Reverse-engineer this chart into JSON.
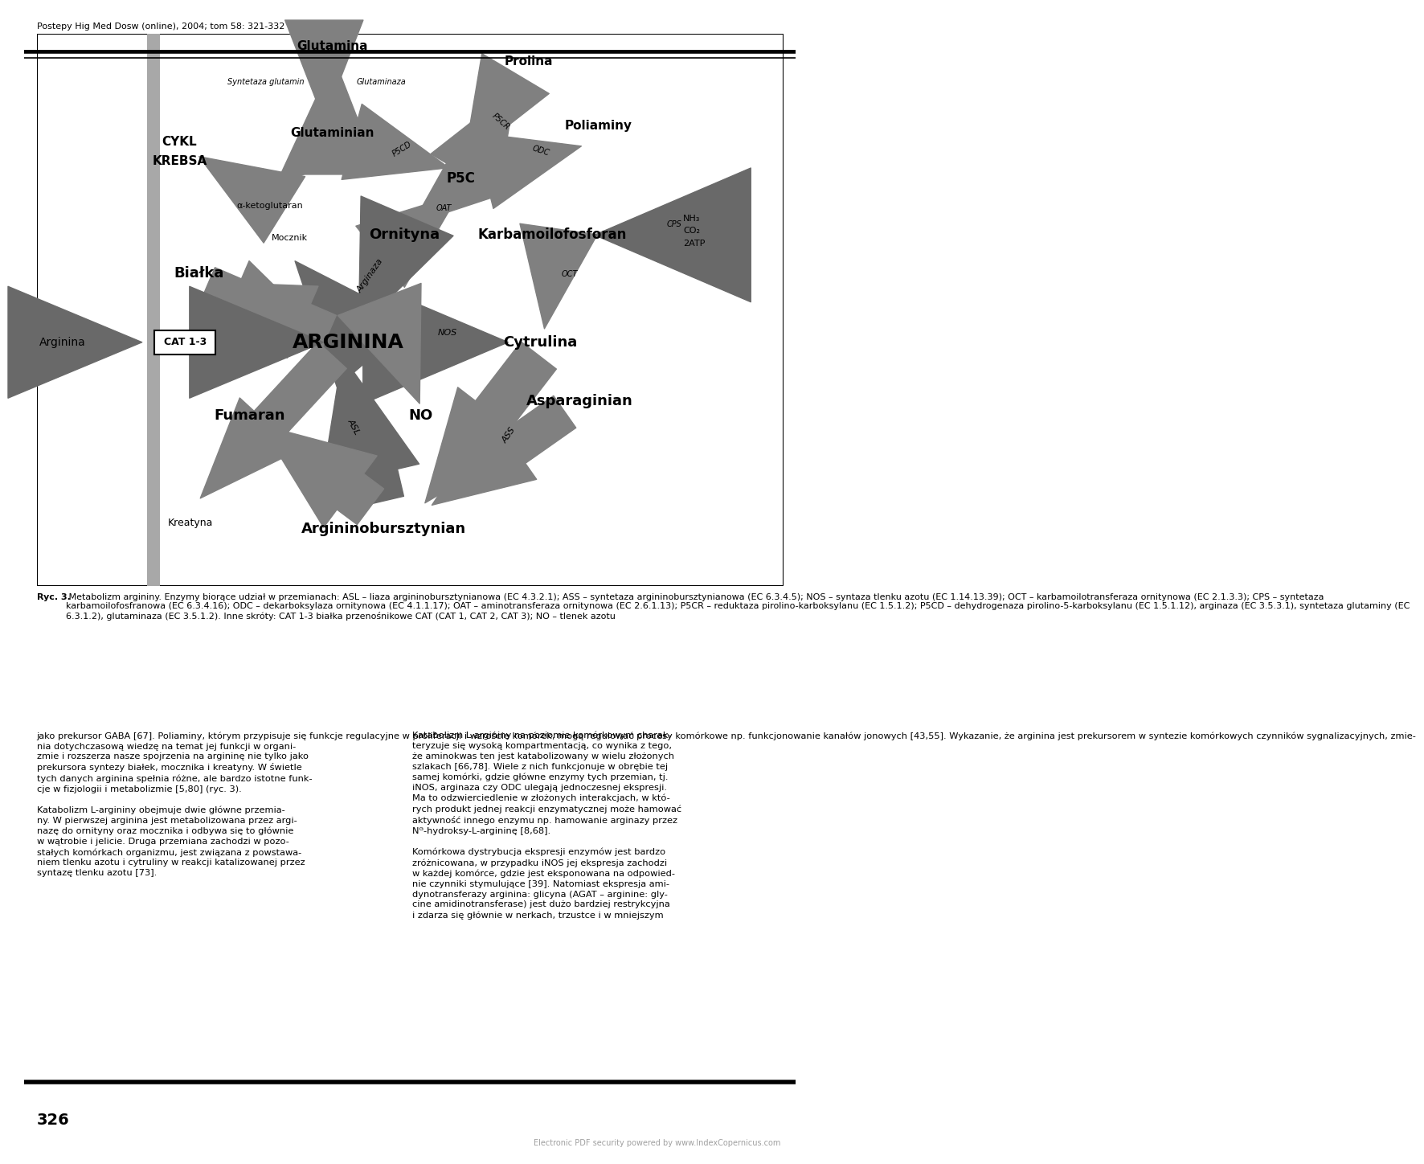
{
  "page_header": "Postepy Hig Med Dosw (online), 2004; tom 58: 321-332",
  "page_number": "326",
  "footer": "Electronic PDF security powered by www.IndexCopernicus.com",
  "caption_bold": "Ryc. 3.",
  "caption_text": " Metabolizm argininy. Enzymy biorące udział w przemianach: ASL – liaza argininobursztynianowa (EC 4.3.2.1); ASS – syntetaza argininobursztynianowa (EC 6.3.4.5); NOS – syntaza tlenku azotu (EC 1.14.13.39); OCT – karbamoilotransferaza ornitynowa (EC 2.1.3.3); CPS – syntetaza karbamoilofosfranowa (EC 6.3.4.16); ODC – dekarboksylaza ornitynowa (EC 4.1.1.17); OAT – aminotransferaza ornitynowa (EC 2.6.1.13); P5CR – reduktaza pirolino-karboksylanu (EC 1.5.1.2); P5CD – dehydrogenaza pirolino-5-karboksylanu (EC 1.5.1.12), arginaza (EC 3.5.3.1), syntetaza glutaminy (EC 6.3.1.2), glutaminaza (EC 3.5.1.2). Inne skróty: CAT 1-3 białka przenośnikowe CAT (CAT 1, CAT 2, CAT 3); NO – tlenek azotu",
  "body_left1": "jako prekursor GABA [67]. Poliaminy, którym przypisuje się funkcje regulacyjne w proliferacji i wzroście komórek, mogą regulować procesy komórkowe np. funkcjonowanie kanałów jonowych [43,55]. Wykazanie, że arginina jest prekursorem w syntezie komórkowych czynników sygnalizacyjnych, zmie-\nnia dotychczasową wiedzę na temat jej funkcji w organi-\nzmie i rozszerza nasze spojrzenia na argininę nie tylko jako\nprekursora syntezy białek, mocznika i kreatyny. W świetle\ntych danych arginina spełnia różne, ale bardzo istotne funk-\ncje w fizjologii i metabolizmie [5,80] (ryc. 3).",
  "body_left2": "Katabolizm L-argininy obejmuje dwie główne przemia-\nny. W pierwszej arginina jest metabolizowana przez argi-\nnazę do ornityny oraz mocznika i odbywa się to głównie\nw wątrobie i jelicie. Druga przemiana zachodzi w pozo-\nstałych komórkach organizmu, jest związana z powstawa-\nniem tlenku azotu i cytruliny w reakcji katalizowanej przez\nsyntazę tlenku azotu [73].",
  "body_right1": "Katabolizm L-argininy na poziomie komórkowym charak-\nteryzuje się wysoką kompartmentacją, co wynika z tego,\nże aminokwas ten jest katabolizowany w wielu złożonych\nszlakach [66,78]. Wiele z nich funkcjonuje w obrębie tej\nsamej komórki, gdzie główne enzymy tych przemian, tj.\niNOS, arginaza czy ODC ulegają jednoczesnej ekspresji.\nMa to odzwierciedlenie w złożonych interakcjach, w któ-\nrych produkt jednej reakcji enzymatycznej może hamować\naktywność innego enzymu np. hamowanie arginazy przez\nNᴳ-hydroksy-L-argininę [8,68].",
  "body_right2": "Komórkowa dystrybucja ekspresji enzymów jest bardzo\nzróżnicowana, w przypadku iNOS jej ekspresja zachodzi\nw każdej komórce, gdzie jest eksponowana na odpowied-\nnie czynniki stymulujące [39]. Natomiast ekspresja ami-\ndynotransferazy arginina: glicyna (AGAT – arginine: gly-\ncine amidinotransferase) jest dużo bardziej restrykcyjna\ni zdarza się głównie w nerkach, trzustce i w mniejszym",
  "arrow_color": "#808080",
  "bg_color": "#ffffff"
}
